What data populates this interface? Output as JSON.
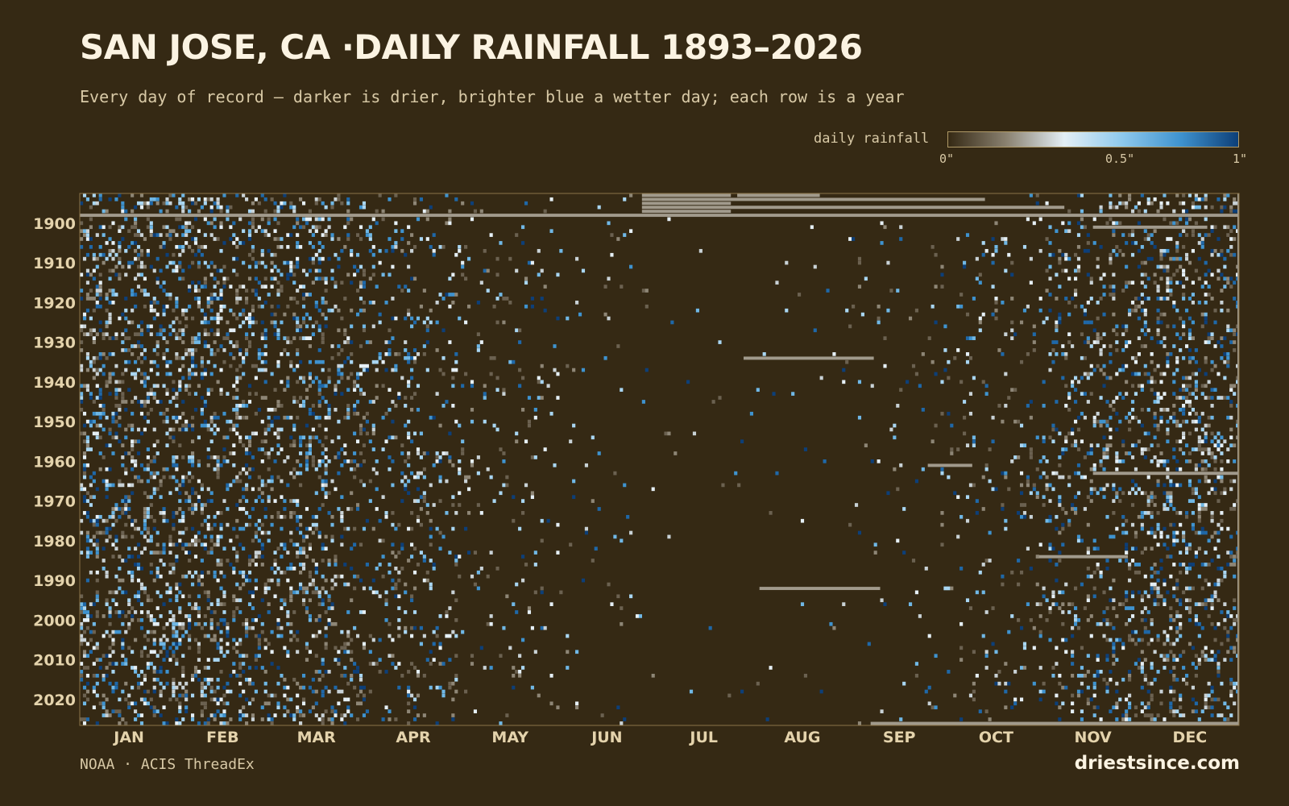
{
  "chart_data": {
    "type": "heatmap",
    "title": "SAN JOSE, CA ·DAILY RAINFALL 1893–2026",
    "subtitle": "Every day of record — darker is drier, brighter blue a wetter day; each row is a year",
    "rows": "year",
    "columns": "day of year",
    "year_range": [
      1893,
      2026
    ],
    "x_tick_labels": [
      "JAN",
      "FEB",
      "MAR",
      "APR",
      "MAY",
      "JUN",
      "JUL",
      "AUG",
      "SEP",
      "OCT",
      "NOV",
      "DEC"
    ],
    "y_tick_labels": [
      "1900",
      "1910",
      "1920",
      "1930",
      "1940",
      "1950",
      "1960",
      "1970",
      "1980",
      "1990",
      "2000",
      "2010",
      "2020"
    ],
    "y_ticks": [
      1900,
      1910,
      1920,
      1930,
      1940,
      1950,
      1960,
      1970,
      1980,
      1990,
      2000,
      2010,
      2020
    ],
    "legend": {
      "label": "daily rainfall",
      "ticks": [
        "0\"",
        "0.5\"",
        "1\""
      ],
      "range_inches": [
        0,
        1
      ],
      "colors": [
        "#352914",
        "#8a8170",
        "#e3eef5",
        "#8ec9ec",
        "#3f93cf",
        "#0d3f78"
      ]
    },
    "monthly_wet_day_probability": [
      0.27,
      0.26,
      0.22,
      0.13,
      0.06,
      0.02,
      0.005,
      0.006,
      0.02,
      0.06,
      0.15,
      0.24
    ],
    "missing_data_segments": [
      {
        "year": 1893,
        "from_day": 178,
        "to_day": 205
      },
      {
        "year": 1893,
        "from_day": 208,
        "to_day": 233
      },
      {
        "year": 1894,
        "from_day": 178,
        "to_day": 285
      },
      {
        "year": 1895,
        "from_day": 178,
        "to_day": 205
      },
      {
        "year": 1896,
        "from_day": 178,
        "to_day": 310
      },
      {
        "year": 1897,
        "from_day": 178,
        "to_day": 205
      },
      {
        "year": 1898,
        "from_day": 1,
        "to_day": 365
      },
      {
        "year": 1901,
        "from_day": 320,
        "to_day": 355
      },
      {
        "year": 1934,
        "from_day": 210,
        "to_day": 250
      },
      {
        "year": 1961,
        "from_day": 268,
        "to_day": 281
      },
      {
        "year": 1963,
        "from_day": 320,
        "to_day": 365
      },
      {
        "year": 1984,
        "from_day": 303,
        "to_day": 330
      },
      {
        "year": 1992,
        "from_day": 215,
        "to_day": 252
      },
      {
        "year": 2026,
        "from_day": 250,
        "to_day": 365
      }
    ],
    "colors": {
      "background": "#352914",
      "missing": "#a19a8c",
      "axis": "#8a7448",
      "tick_text": "#e4d3ac"
    }
  },
  "source": "NOAA · ACIS ThreadEx",
  "site": "driestsince.com"
}
